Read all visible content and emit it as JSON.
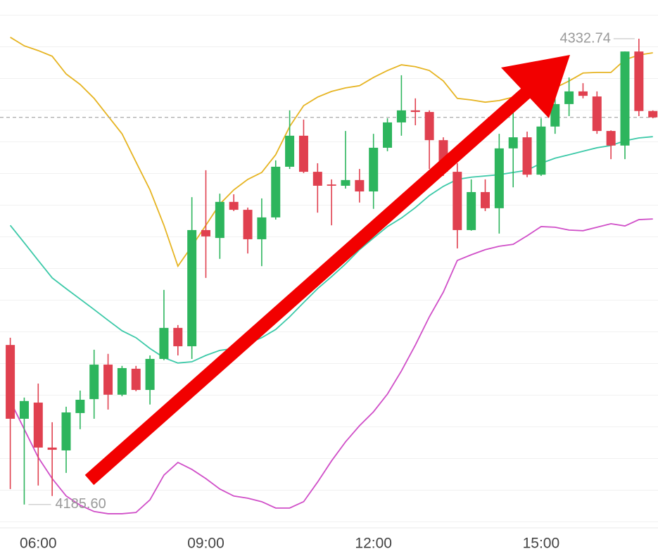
{
  "chart_data": {
    "type": "candlestick",
    "categories": [
      null,
      null,
      "06:00",
      null,
      null,
      null,
      null,
      null,
      null,
      null,
      null,
      null,
      null,
      null,
      "09:00",
      null,
      null,
      null,
      null,
      null,
      null,
      null,
      null,
      null,
      null,
      null,
      "12:00",
      null,
      null,
      null,
      null,
      null,
      null,
      null,
      null,
      null,
      null,
      null,
      "15:00",
      null,
      null,
      null,
      null,
      null,
      null,
      null,
      null
    ],
    "open": [
      4236.0,
      4212.7,
      4217.8,
      4203.6,
      4202.7,
      4214.5,
      4218.9,
      4229.8,
      4220.3,
      4228.5,
      4221.8,
      4231.6,
      4241.4,
      4235.6,
      4272.3,
      4269.8,
      4281.2,
      4278.7,
      4269.4,
      4276.3,
      4292.3,
      4302.1,
      4290.7,
      4286.7,
      4286.3,
      4288.1,
      4284.5,
      4298.3,
      4306.3,
      4310.1,
      4309.6,
      4300.7,
      4290.7,
      4272.3,
      4284.3,
      4279.2,
      4298.1,
      4301.6,
      4289.8,
      4305.0,
      4312.1,
      4316.1,
      4314.5,
      4303.6,
      4299.0,
      4328.7,
      4309.9
    ],
    "high": [
      4238.3,
      4219.4,
      4223.8,
      4211.6,
      4216.5,
      4221.6,
      4234.5,
      4233.2,
      4229.4,
      4229.4,
      4232.7,
      4253.4,
      4242.3,
      4282.7,
      4291.2,
      4283.8,
      4283.6,
      4279.4,
      4282.3,
      4294.3,
      4310.1,
      4307.2,
      4293.4,
      4288.3,
      4303.6,
      4291.6,
      4302.7,
      4307.6,
      4321.2,
      4313.9,
      4310.1,
      4301.6,
      4293.4,
      4288.3,
      4288.3,
      4302.7,
      4309.4,
      4303.4,
      4307.6,
      4316.5,
      4320.5,
      4318.7,
      4316.1,
      4303.8,
      4328.7,
      4332.74,
      4310.1
    ],
    "low": [
      4190.5,
      4185.6,
      4191.6,
      4188.3,
      4195.6,
      4209.4,
      4212.7,
      4215.6,
      4219.8,
      4221.4,
      4217.2,
      4231.2,
      4232.7,
      4231.6,
      4257.2,
      4263.2,
      4278.3,
      4264.9,
      4260.9,
      4275.6,
      4291.6,
      4290.3,
      4277.8,
      4273.8,
      4285.4,
      4281.0,
      4279.0,
      4297.2,
      4302.1,
      4305.4,
      4291.6,
      4289.4,
      4266.5,
      4272.1,
      4278.3,
      4271.2,
      4285.8,
      4289.0,
      4289.4,
      4302.7,
      4308.3,
      4313.9,
      4302.7,
      4294.7,
      4294.7,
      4308.3,
      4307.6
    ],
    "close": [
      4212.7,
      4218.3,
      4203.6,
      4202.9,
      4214.7,
      4218.7,
      4229.8,
      4220.3,
      4228.7,
      4221.8,
      4231.6,
      4241.4,
      4235.6,
      4272.3,
      4270.3,
      4281.2,
      4278.7,
      4269.4,
      4276.3,
      4292.3,
      4302.1,
      4290.7,
      4286.3,
      4286.3,
      4288.1,
      4284.5,
      4298.3,
      4306.3,
      4310.1,
      4309.6,
      4300.7,
      4290.7,
      4272.3,
      4284.3,
      4279.2,
      4298.1,
      4301.6,
      4289.8,
      4305.0,
      4312.1,
      4316.1,
      4314.7,
      4303.6,
      4299.0,
      4328.7,
      4309.9,
      4307.9
    ],
    "up_color": "#2db55d",
    "down_color": "#e0404f",
    "lines": [
      {
        "color": "#e6b422",
        "values": [
          4333.2,
          4330.5,
          4329.0,
          4327.2,
          4321.6,
          4318.3,
          4313.9,
          4308.3,
          4302.7,
          4293.8,
          4285.0,
          4273.8,
          4260.9,
          4267.2,
          4273.8,
          4280.5,
          4285.0,
          4288.3,
          4290.5,
          4296.1,
          4305.0,
          4311.6,
          4314.3,
          4316.1,
          4317.2,
          4317.9,
          4320.5,
          4322.7,
          4324.5,
          4323.9,
          4322.7,
          4319.4,
          4313.9,
          4313.4,
          4312.7,
          4313.2,
          4314.3,
          4315.0,
          4316.1,
          4317.2,
          4319.4,
          4321.9,
          4322.1,
          4322.1,
          4326.1,
          4327.6,
          4328.3
        ]
      },
      {
        "color": "#3cc9a8",
        "values": [
          4273.8,
          4268.3,
          4262.7,
          4257.2,
          4253.8,
          4250.5,
          4247.2,
          4243.8,
          4240.5,
          4238.3,
          4234.9,
          4232.0,
          4230.3,
          4230.7,
          4232.7,
          4234.3,
          4234.9,
          4236.5,
          4238.3,
          4240.9,
          4244.9,
          4249.4,
          4253.8,
          4257.6,
          4261.6,
          4266.1,
          4269.8,
          4273.4,
          4276.1,
          4279.4,
          4283.2,
          4286.1,
          4288.3,
          4289.0,
          4289.4,
          4289.8,
          4290.5,
          4291.2,
          4293.4,
          4295.0,
          4296.1,
          4297.2,
          4298.3,
          4299.0,
          4300.5,
          4301.4,
          4301.8
        ]
      },
      {
        "color": "#d04fc8",
        "values": [
          4218.3,
          4209.4,
          4200.5,
          4193.8,
          4188.3,
          4185.4,
          4183.4,
          4182.7,
          4182.7,
          4183.1,
          4187.1,
          4194.9,
          4198.9,
          4196.7,
          4193.8,
          4190.5,
          4188.3,
          4187.6,
          4186.5,
          4184.5,
          4184.5,
          4186.5,
          4192.7,
          4199.4,
          4205.4,
          4210.5,
          4214.9,
          4220.5,
          4227.8,
          4236.0,
          4244.9,
          4252.7,
          4262.7,
          4264.5,
          4266.1,
          4267.2,
          4267.8,
          4270.5,
          4273.4,
          4273.2,
          4272.3,
          4272.1,
          4273.2,
          4274.3,
          4273.6,
          4275.6,
          4275.8
        ]
      }
    ],
    "ylim": [
      4178.24,
      4344.97
    ],
    "annotations": [
      {
        "value": 4332.74,
        "label": "4332.74"
      },
      {
        "value": 4185.6,
        "label": "4185.60"
      }
    ]
  }
}
